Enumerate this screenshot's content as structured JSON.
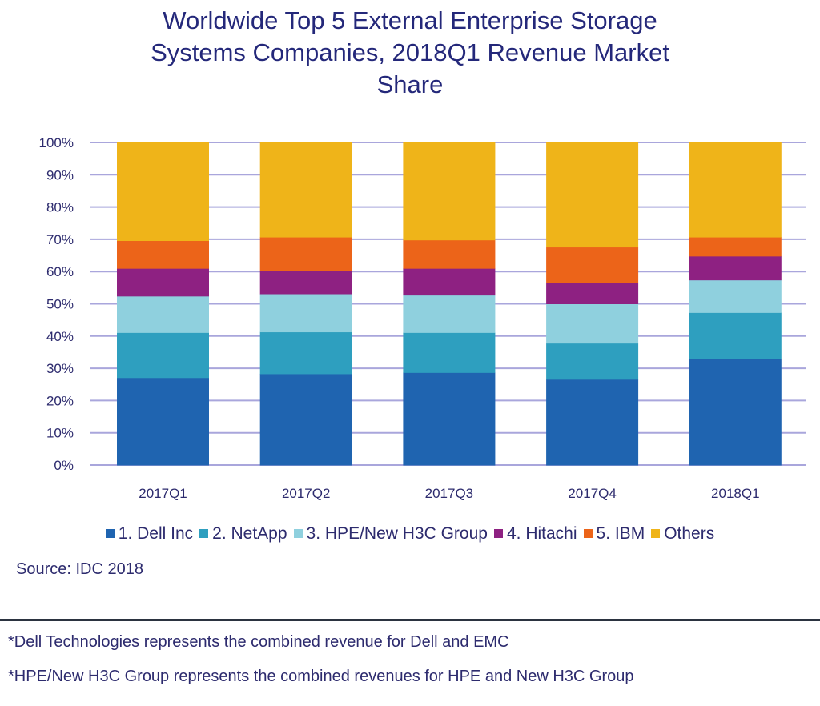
{
  "chart_data": {
    "type": "bar",
    "stacked": true,
    "title": "Worldwide Top 5 External Enterprise Storage Systems Companies, 2018Q1 Revenue Market Share",
    "title_lines": [
      "Worldwide Top 5 External Enterprise Storage",
      "Systems Companies, 2018Q1 Revenue Market",
      "Share"
    ],
    "categories": [
      "2017Q1",
      "2017Q2",
      "2017Q3",
      "2017Q4",
      "2018Q1"
    ],
    "series": [
      {
        "name": "1. Dell Inc",
        "color": "#1f64b0",
        "values": [
          27.1,
          28.3,
          28.7,
          26.6,
          33.0
        ]
      },
      {
        "name": "2. NetApp",
        "color": "#2e9fbf",
        "values": [
          14.0,
          13.0,
          12.4,
          11.2,
          14.3
        ]
      },
      {
        "name": "3. HPE/New H3C Group",
        "color": "#8fd0de",
        "values": [
          11.3,
          11.8,
          11.6,
          12.2,
          10.1
        ]
      },
      {
        "name": "4. Hitachi",
        "color": "#8e2182",
        "values": [
          8.6,
          7.1,
          8.3,
          6.6,
          7.4
        ]
      },
      {
        "name": "5. IBM",
        "color": "#ec6419",
        "values": [
          8.6,
          10.5,
          8.8,
          11.0,
          5.9
        ]
      },
      {
        "name": "Others",
        "color": "#efb419",
        "values": [
          30.4,
          29.3,
          30.2,
          32.4,
          29.3
        ]
      }
    ],
    "yticks": [
      "0%",
      "10%",
      "20%",
      "30%",
      "40%",
      "50%",
      "60%",
      "70%",
      "80%",
      "90%",
      "100%"
    ],
    "ylim": [
      0,
      100
    ],
    "xlabel": "",
    "ylabel": "",
    "grid": true,
    "gridline_color": "#a9a6dc",
    "legend_position": "bottom"
  },
  "source": "Source: IDC 2018",
  "footnotes": [
    "*Dell Technologies represents the combined revenue for Dell and EMC",
    "*HPE/New H3C Group represents the combined revenues for HPE and New H3C Group"
  ]
}
